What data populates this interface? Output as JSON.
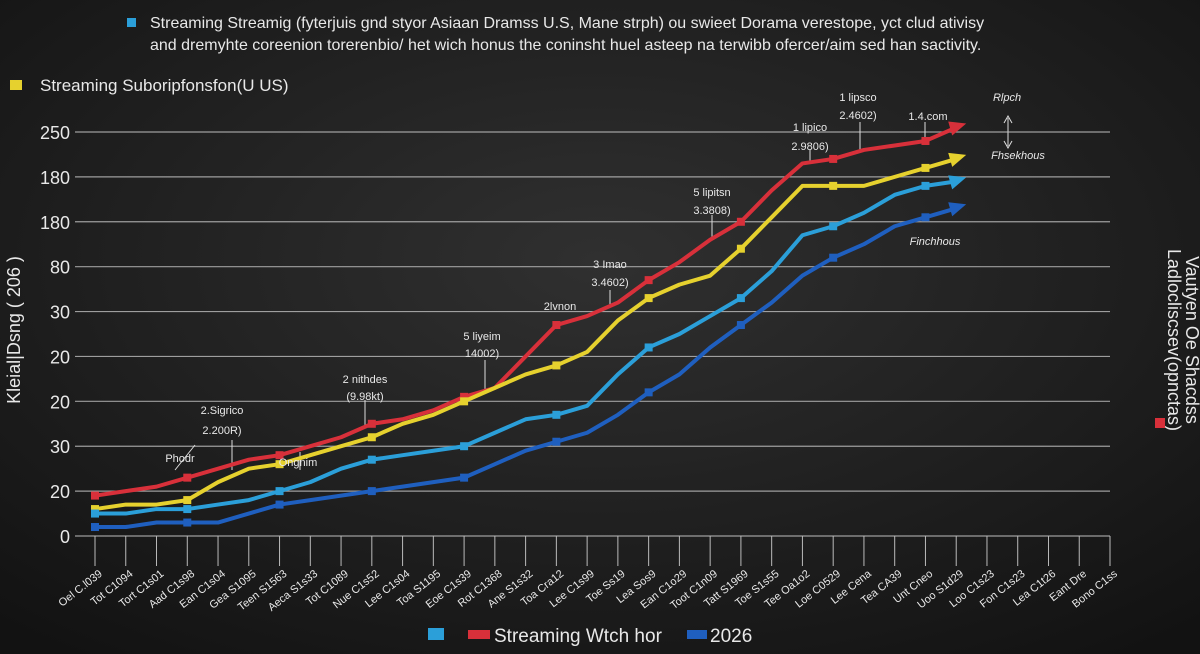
{
  "chart_data": {
    "type": "line",
    "title_lines": [
      "Streaming Streamig (fyterjuis gnd styor Asiaan Dramss U.S, Mane strph) ou swieet Dorama verestope, yct clud ativisy",
      "and dremyhte coreenion torerenbio/ het wich honus the coninsht huel asteep na terwibb ofercer/aim sed han sactivity."
    ],
    "legend_title": "Streaming Suboripfonsfon(U US)",
    "y_label": "Kleial|Dsng ( 206 )",
    "right_label_lines": [
      "Ladlocliscsev(opnctas)",
      "Vautyen Oe Shacdss"
    ],
    "bottom_legend": [
      "Streaming Wtch hor",
      "2026"
    ],
    "ylim": [
      0,
      9
    ],
    "yticks": [
      {
        "value": 0,
        "label": "0"
      },
      {
        "value": 1,
        "label": "20"
      },
      {
        "value": 2,
        "label": "30"
      },
      {
        "value": 3,
        "label": "20"
      },
      {
        "value": 4,
        "label": "20"
      },
      {
        "value": 5,
        "label": "30"
      },
      {
        "value": 6,
        "label": "80"
      },
      {
        "value": 7,
        "label": "180"
      },
      {
        "value": 8,
        "label": "180"
      },
      {
        "value": 9,
        "label": "250"
      }
    ],
    "grid": true,
    "categories": [
      "Oel C.l039",
      "Tot C1094",
      "Tort C1s01",
      "Aad C1s98",
      "Ean C1s04",
      "Gea S1095",
      "Teen S1563",
      "Aeca S1s33",
      "Tot C1089",
      "Nue C1s52",
      "Lee C1s04",
      "Toa S1195",
      "Eoe C1s39",
      "Rot C1368",
      "Ane S1s32",
      "Toa Cra12",
      "Lee C1s99",
      "Toe Ss19",
      "Lea Sos9",
      "Ean C1o29",
      "Toot C1n09",
      "Tatt S1969",
      "Toe S1s55",
      "Tee Oa1o2",
      "Loe C0529",
      "Lee Cena",
      "Tea CA39",
      "Unt Cneo",
      "Uoo S1d29",
      "Loo C1s23",
      "Fon C1s23",
      "Lea C1t26",
      "Eant Dre",
      "Bono C1ss"
    ],
    "series": [
      {
        "color": "#d8303a",
        "values": [
          0.9,
          1.0,
          1.1,
          1.3,
          1.5,
          1.7,
          1.8,
          2.0,
          2.2,
          2.5,
          2.6,
          2.8,
          3.1,
          3.3,
          4.0,
          4.7,
          4.9,
          5.2,
          5.7,
          6.1,
          6.6,
          7.0,
          7.7,
          8.3,
          8.4,
          8.6,
          8.7,
          8.8,
          9.1,
          null,
          null,
          null,
          null,
          null
        ]
      },
      {
        "color": "#e6d12e",
        "values": [
          0.6,
          0.7,
          0.7,
          0.8,
          1.2,
          1.5,
          1.6,
          1.8,
          2.0,
          2.2,
          2.5,
          2.7,
          3.0,
          3.3,
          3.6,
          3.8,
          4.1,
          4.8,
          5.3,
          5.6,
          5.8,
          6.4,
          7.1,
          7.8,
          7.8,
          7.8,
          8.0,
          8.2,
          8.4,
          null,
          null,
          null,
          null,
          null
        ]
      },
      {
        "color": "#2b9fd9",
        "values": [
          0.5,
          0.5,
          0.6,
          0.6,
          0.7,
          0.8,
          1.0,
          1.2,
          1.5,
          1.7,
          1.8,
          1.9,
          2.0,
          2.3,
          2.6,
          2.7,
          2.9,
          3.6,
          4.2,
          4.5,
          4.9,
          5.3,
          5.9,
          6.7,
          6.9,
          7.2,
          7.6,
          7.8,
          7.9,
          null,
          null,
          null,
          null,
          null
        ]
      },
      {
        "color": "#1f5fbf",
        "values": [
          0.2,
          0.2,
          0.3,
          0.3,
          0.3,
          0.5,
          0.7,
          0.8,
          0.9,
          1.0,
          1.1,
          1.2,
          1.3,
          1.6,
          1.9,
          2.1,
          2.3,
          2.7,
          3.2,
          3.6,
          4.2,
          4.7,
          5.2,
          5.8,
          6.2,
          6.5,
          6.9,
          7.1,
          7.3,
          null,
          null,
          null,
          null,
          null
        ]
      }
    ],
    "annotations": [
      "Phodr",
      "2.Sigrico",
      "2.200R)",
      "Ongnim",
      "2 nithdes",
      "(9.98kt)",
      "5 liyeim",
      "14002)",
      "2lvnon",
      "3 Imao",
      "3.4602)",
      "5 lipitsn",
      "3.3808)",
      "1 lipico",
      "2.9806)",
      "1 lipsco",
      "2.4602)",
      "1.4.com",
      "Rlpch",
      "Fhsekhous",
      "Finchhous"
    ]
  }
}
